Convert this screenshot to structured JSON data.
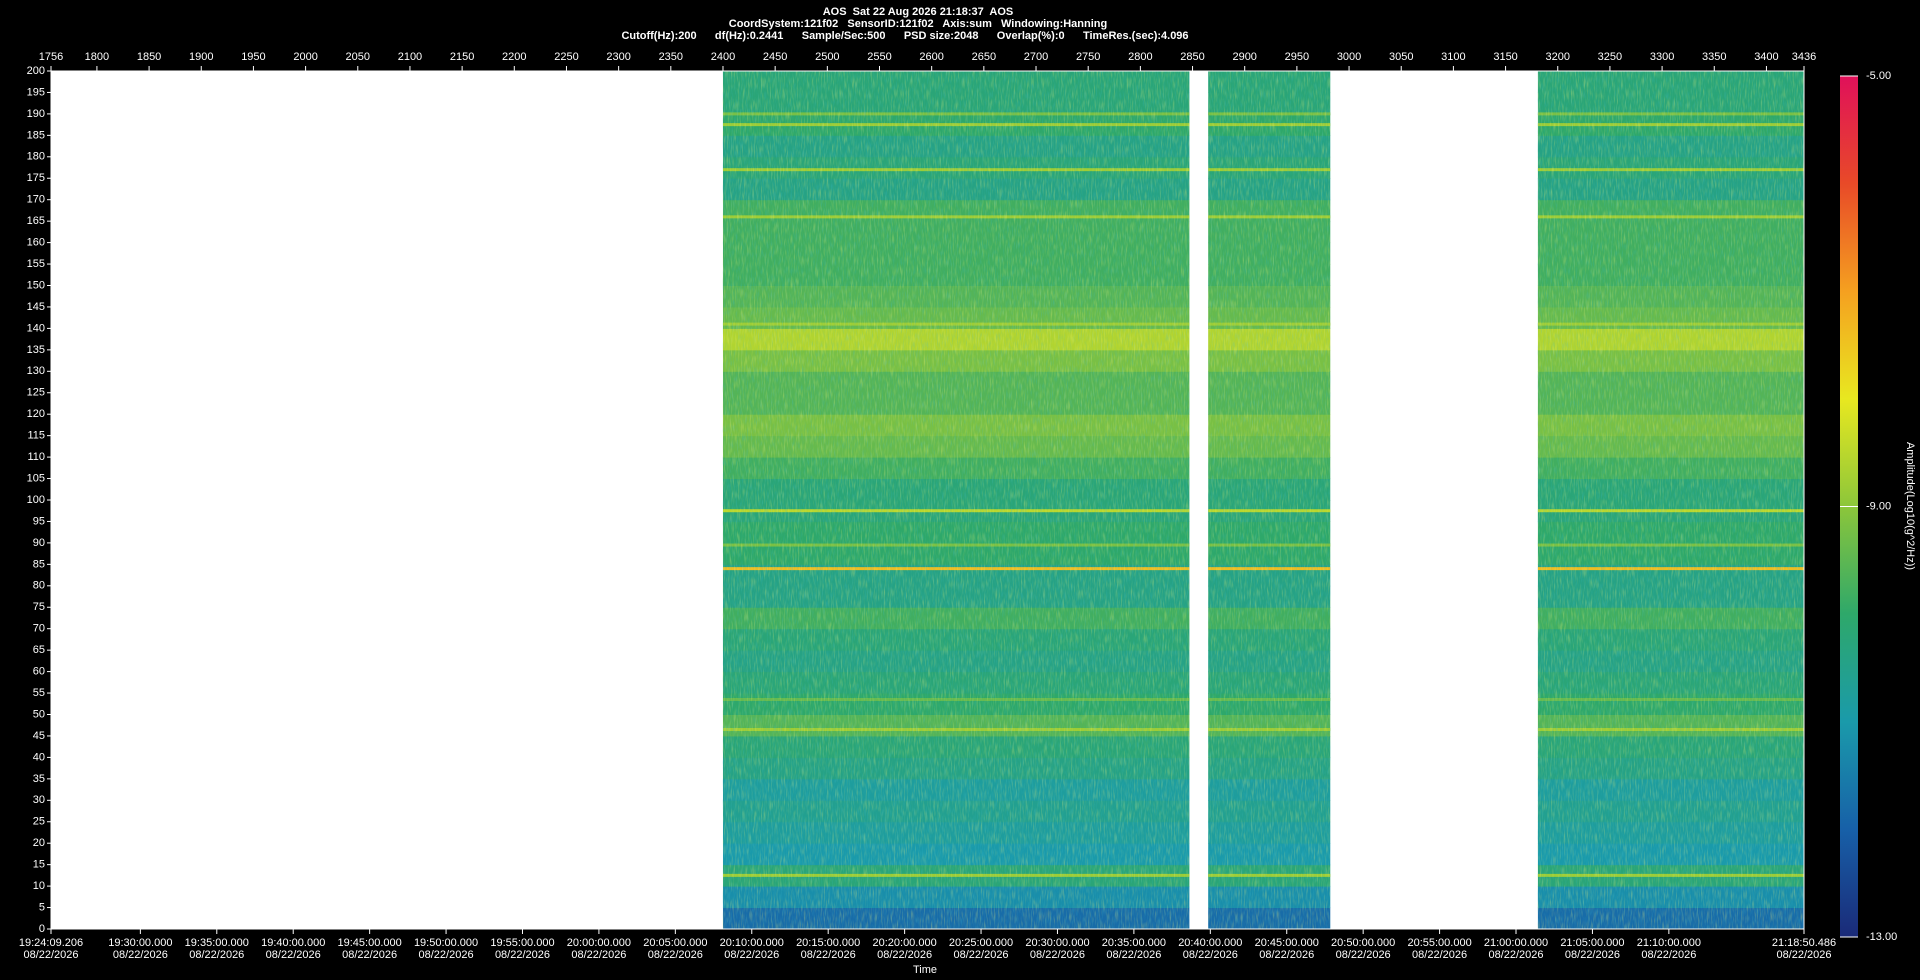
{
  "chart_data": {
    "type": "spectrogram",
    "title": "AOS  Sat 22 Aug 2026 21:18:37  AOS",
    "info_lines": [
      "CoordSystem:121f02   SensorID:121f02   Axis:sum   Windowing:Hanning",
      "Cutoff(Hz):200      df(Hz):0.2441      Sample/Sec:500      PSD size:2048      Overlap(%):0      TimeRes.(sec):4.096"
    ],
    "xlabel": "Time",
    "xlim": [
      1756,
      3436
    ],
    "xticks": [
      1756,
      1800,
      1850,
      1900,
      1950,
      2000,
      2050,
      2100,
      2150,
      2200,
      2250,
      2300,
      2350,
      2400,
      2450,
      2500,
      2550,
      2600,
      2650,
      2700,
      2750,
      2800,
      2850,
      2900,
      2950,
      3000,
      3050,
      3100,
      3150,
      3200,
      3250,
      3300,
      3350,
      3400,
      3436
    ],
    "time_ticks": [
      {
        "value": 1756,
        "label": "19:24:09.206\n08/22/2026"
      },
      {
        "value": 1841.64,
        "label": "19:30:00.000\n08/22/2026"
      },
      {
        "value": 1914.89,
        "label": "19:35:00.000\n08/22/2026"
      },
      {
        "value": 1988.13,
        "label": "19:40:00.000\n08/22/2026"
      },
      {
        "value": 2061.37,
        "label": "19:45:00.000\n08/22/2026"
      },
      {
        "value": 2134.61,
        "label": "19:50:00.000\n08/22/2026"
      },
      {
        "value": 2207.85,
        "label": "19:55:00.000\n08/22/2026"
      },
      {
        "value": 2281.1,
        "label": "20:00:00.000\n08/22/2026"
      },
      {
        "value": 2354.34,
        "label": "20:05:00.000\n08/22/2026"
      },
      {
        "value": 2427.58,
        "label": "20:10:00.000\n08/22/2026"
      },
      {
        "value": 2500.82,
        "label": "20:15:00.000\n08/22/2026"
      },
      {
        "value": 2574.07,
        "label": "20:20:00.000\n08/22/2026"
      },
      {
        "value": 2647.31,
        "label": "20:25:00.000\n08/22/2026"
      },
      {
        "value": 2720.55,
        "label": "20:30:00.000\n08/22/2026"
      },
      {
        "value": 2793.79,
        "label": "20:35:00.000\n08/22/2026"
      },
      {
        "value": 2867.04,
        "label": "20:40:00.000\n08/22/2026"
      },
      {
        "value": 2940.28,
        "label": "20:45:00.000\n08/22/2026"
      },
      {
        "value": 3013.52,
        "label": "20:50:00.000\n08/22/2026"
      },
      {
        "value": 3086.76,
        "label": "20:55:00.000\n08/22/2026"
      },
      {
        "value": 3160,
        "label": "21:00:00.000\n08/22/2026"
      },
      {
        "value": 3233.25,
        "label": "21:05:00.000\n08/22/2026"
      },
      {
        "value": 3306.49,
        "label": "21:10:00.000\n08/22/2026"
      },
      {
        "value": 3436,
        "label": "21:18:50.486\n08/22/2026"
      }
    ],
    "ylim": [
      0,
      200
    ],
    "yticks": [
      0,
      5,
      10,
      15,
      20,
      25,
      30,
      35,
      40,
      45,
      50,
      55,
      60,
      65,
      70,
      75,
      80,
      85,
      90,
      95,
      100,
      105,
      110,
      115,
      120,
      125,
      130,
      135,
      140,
      145,
      150,
      155,
      160,
      165,
      170,
      175,
      180,
      185,
      190,
      195,
      200
    ],
    "segments": [
      [
        2400,
        2847
      ],
      [
        2865,
        2982
      ],
      [
        3181,
        3436
      ]
    ],
    "band_edges": [
      0,
      5,
      10,
      15,
      20,
      25,
      30,
      35,
      40,
      45,
      50,
      55,
      60,
      65,
      70,
      75,
      80,
      85,
      90,
      95,
      100,
      105,
      110,
      115,
      120,
      125,
      130,
      135,
      140,
      145,
      150,
      155,
      160,
      165,
      170,
      175,
      180,
      185,
      190,
      195,
      200
    ],
    "band_levels": [
      -11.8,
      -11.2,
      -10.2,
      -11,
      -10.8,
      -10.6,
      -10.8,
      -10.4,
      -10.2,
      -9.6,
      -10,
      -10.2,
      -10.4,
      -10.2,
      -9.8,
      -10.4,
      -10.4,
      -10,
      -10,
      -10.2,
      -10.2,
      -9.8,
      -9.4,
      -9.2,
      -9.6,
      -9.6,
      -9.2,
      -8.6,
      -9.4,
      -9.6,
      -9.8,
      -9.8,
      -9.8,
      -9.8,
      -10.4,
      -10.2,
      -10.4,
      -10,
      -10.2,
      -10.2
    ],
    "tones": {
      "freq": [
        12.5,
        46.5,
        53.5,
        84,
        89.5,
        97.5,
        141,
        166,
        177,
        187.5,
        190
      ],
      "level": [
        -8.8,
        -8.8,
        -9.4,
        -7.4,
        -9.2,
        -8.5,
        -8.8,
        -8.8,
        -8.8,
        -8.8,
        -9.2
      ]
    },
    "clim": [
      -13,
      -5
    ],
    "colormap": [
      "#1a2a78",
      "#1760a8",
      "#1a9aaa",
      "#2ea86a",
      "#8cc63a",
      "#e8e820",
      "#f5a020",
      "#e84a28",
      "#e0105a"
    ],
    "cticks": [
      {
        "value": -5,
        "label": "-5.00"
      },
      {
        "value": -9,
        "label": "-9.00"
      },
      {
        "value": -13,
        "label": "-13.00"
      }
    ],
    "clabel": "Amplitude(Log10(g^2/Hz))"
  }
}
